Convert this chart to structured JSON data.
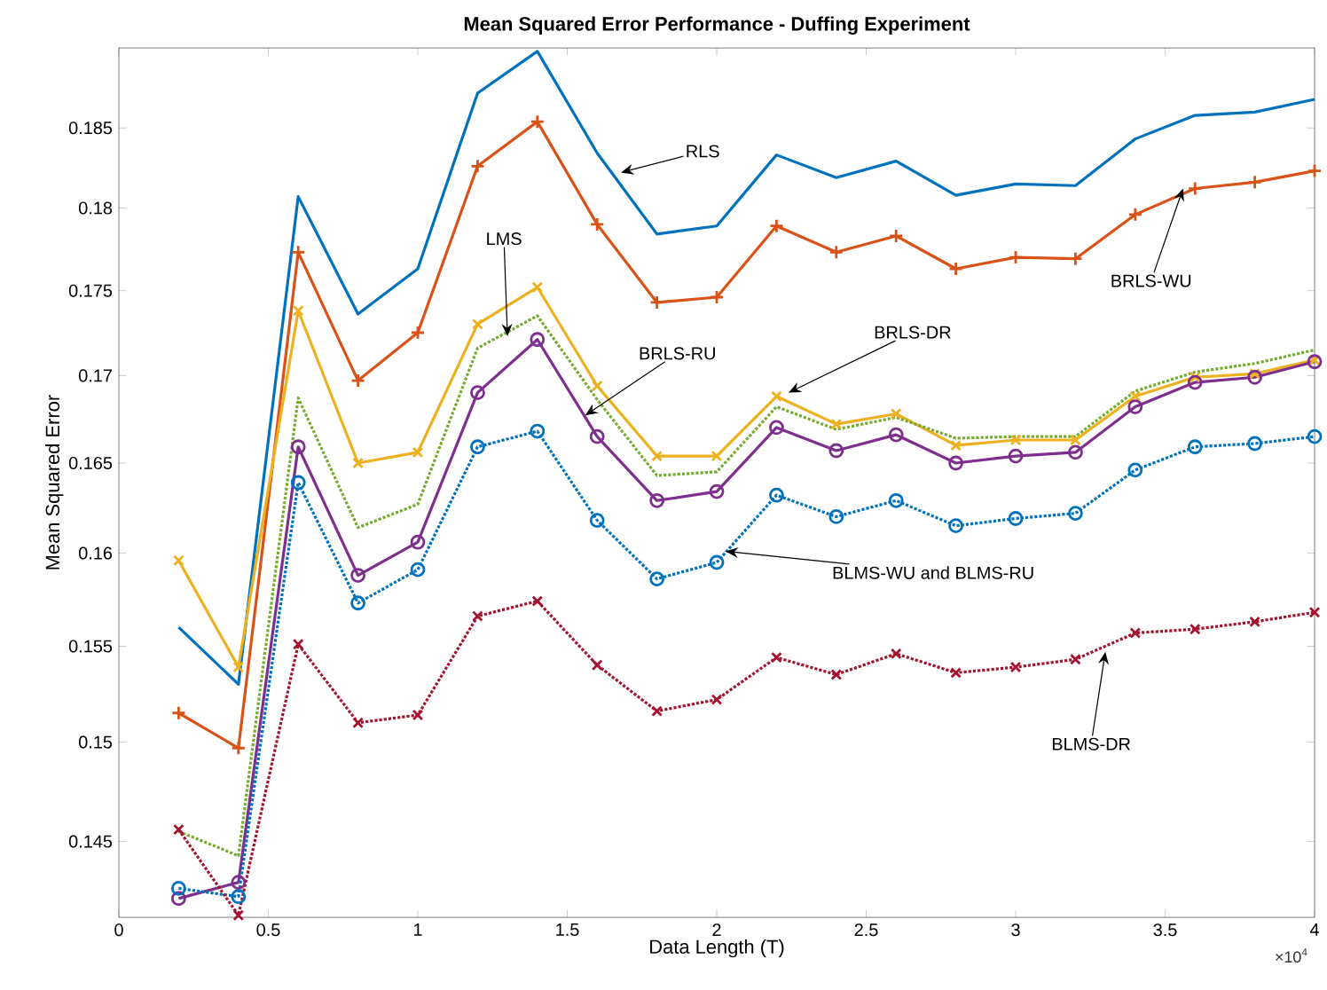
{
  "chart_data": {
    "type": "line",
    "title": "Mean Squared Error Performance - Duffing Experiment",
    "xlabel": "Data Length (T)",
    "ylabel": "Mean Squared Error",
    "log": "y",
    "x": [
      0.2,
      0.4,
      0.6,
      0.8,
      1.0,
      1.2,
      1.4,
      1.6,
      1.8,
      2.0,
      2.2,
      2.4,
      2.6,
      2.8,
      3.0,
      3.2,
      3.4,
      3.6,
      3.8,
      4.0
    ],
    "xlim": [
      0,
      4
    ],
    "xticks": [
      0,
      0.5,
      1,
      1.5,
      2,
      2.5,
      3,
      3.5,
      4
    ],
    "ylim": [
      0.1413,
      0.1901
    ],
    "yticks": [
      0.145,
      0.15,
      0.155,
      0.16,
      0.165,
      0.17,
      0.175,
      0.18,
      0.185
    ],
    "series": [
      {
        "color": "#0072bd",
        "marker": "none",
        "line_style": "solid",
        "values": [
          0.156,
          0.153,
          0.1807,
          0.1736,
          0.1763,
          0.1872,
          0.1899,
          0.1834,
          0.1784,
          0.1789,
          0.1833,
          0.1819,
          0.1829,
          0.1808,
          0.1815,
          0.1814,
          0.1843,
          0.1858,
          0.186,
          0.1868
        ]
      },
      {
        "color": "#d95319",
        "marker": "plus",
        "line_style": "solid",
        "values": [
          0.1515,
          0.1497,
          0.1773,
          0.1697,
          0.1725,
          0.1826,
          0.1854,
          0.179,
          0.1743,
          0.1746,
          0.1789,
          0.1773,
          0.1783,
          0.1763,
          0.177,
          0.1769,
          0.1796,
          0.1812,
          0.1816,
          0.1823
        ]
      },
      {
        "color": "#edb120",
        "marker": "cross",
        "line_style": "solid",
        "values": [
          0.1596,
          0.1539,
          0.1738,
          0.165,
          0.1656,
          0.173,
          0.1752,
          0.1694,
          0.1654,
          0.1654,
          0.1688,
          0.1672,
          0.1678,
          0.166,
          0.1663,
          0.1663,
          0.1688,
          0.1699,
          0.1701,
          0.1709
        ]
      },
      {
        "color": "#77ac30",
        "marker": "none",
        "line_style": "dotted",
        "values": [
          0.1455,
          0.1443,
          0.1687,
          0.1614,
          0.1627,
          0.1716,
          0.1735,
          0.1686,
          0.1643,
          0.1645,
          0.1682,
          0.1669,
          0.1676,
          0.1664,
          0.1665,
          0.1665,
          0.1691,
          0.1702,
          0.1707,
          0.1715
        ]
      },
      {
        "color": "#7e2f8e",
        "marker": "circle",
        "line_style": "solid",
        "values": [
          0.1422,
          0.143,
          0.1659,
          0.1588,
          0.1606,
          0.169,
          0.1721,
          0.1665,
          0.1629,
          0.1634,
          0.167,
          0.1657,
          0.1666,
          0.165,
          0.1654,
          0.1656,
          0.1682,
          0.1696,
          0.1699,
          0.1708
        ]
      },
      {
        "color": "#0072bd",
        "marker": "circle",
        "line_style": "dotted",
        "values": [
          0.1427,
          0.1423,
          0.1639,
          0.1573,
          0.1591,
          0.1659,
          0.1668,
          0.1618,
          0.1586,
          0.1595,
          0.1632,
          0.162,
          0.1629,
          0.1615,
          0.1619,
          0.1622,
          0.1646,
          0.1659,
          0.1661,
          0.1665
        ]
      },
      {
        "color": "#a2142f",
        "marker": "cross",
        "line_style": "dotted",
        "values": [
          0.1456,
          0.1414,
          0.1551,
          0.151,
          0.1514,
          0.1566,
          0.1574,
          0.154,
          0.1516,
          0.1522,
          0.1544,
          0.1535,
          0.1546,
          0.1536,
          0.1539,
          0.1543,
          0.1557,
          0.1559,
          0.1563,
          0.1568
        ]
      }
    ],
    "annotations": [
      {
        "text": "RLS",
        "x": 1.68,
        "y": 0.1822
      },
      {
        "text": "LMS",
        "x": 1.3,
        "y": 0.1723
      },
      {
        "text": "BRLS-RU",
        "x": 1.56,
        "y": 0.1677
      },
      {
        "text": "BRLS-DR",
        "x": 2.24,
        "y": 0.169
      },
      {
        "text": "BRLS-WU",
        "x": 3.56,
        "y": 0.1812
      },
      {
        "text": "BLMS-WU and BLMS-RU",
        "x": 2.03,
        "y": 0.1601
      },
      {
        "text": "BLMS-DR",
        "x": 3.3,
        "y": 0.1547
      },
      "×10$^{4}$"
    ]
  }
}
